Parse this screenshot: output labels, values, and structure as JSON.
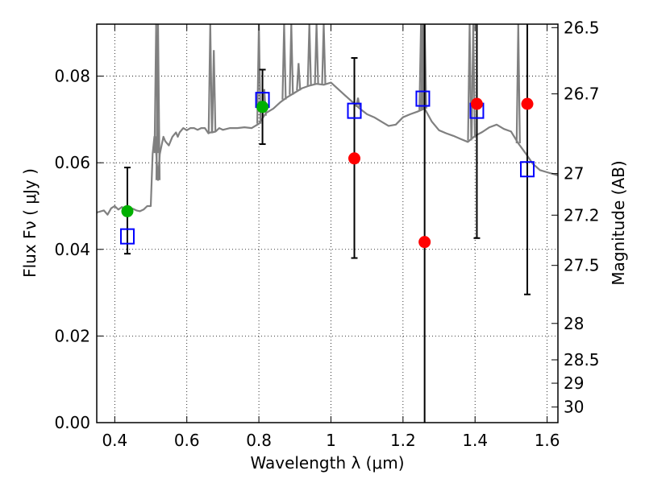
{
  "chart_data": {
    "type": "scatter",
    "xlabel": "Wavelength  λ (μm)",
    "ylabel": "Flux  Fν  ( μJy )",
    "ylabel_right": "Magnitude (AB)",
    "xlim": [
      0.35,
      1.63
    ],
    "ylim": [
      0.0,
      0.092
    ],
    "xticks": [
      0.4,
      0.6,
      0.8,
      1.0,
      1.2,
      1.4,
      1.6
    ],
    "xtick_labels": [
      "0.4",
      "0.6",
      "0.8",
      "1",
      "1.2",
      "1.4",
      "1.6"
    ],
    "yticks": [
      0.0,
      0.02,
      0.04,
      0.06,
      0.08
    ],
    "ytick_labels": [
      "0.00",
      "0.02",
      "0.04",
      "0.06",
      "0.08"
    ],
    "right_ticks": [
      {
        "label": "26.5",
        "flux": 0.0912
      },
      {
        "label": "26.7",
        "flux": 0.0759
      },
      {
        "label": "27",
        "flux": 0.0575
      },
      {
        "label": "27.2",
        "flux": 0.0479
      },
      {
        "label": "27.5",
        "flux": 0.0363
      },
      {
        "label": "28",
        "flux": 0.0229
      },
      {
        "label": "28.5",
        "flux": 0.0145
      },
      {
        "label": "29",
        "flux": 0.0091
      },
      {
        "label": "30",
        "flux": 0.0036
      }
    ],
    "grid": true,
    "colors": {
      "model": "#808080",
      "model_points": "#0000ff",
      "observed_hst": "#00b000",
      "observed_ir": "#ff0000",
      "errorbar": "#000000"
    },
    "series": [
      {
        "kind": "model_spectrum",
        "x": [
          0.35,
          0.37,
          0.38,
          0.39,
          0.4,
          0.41,
          0.42,
          0.43,
          0.44,
          0.45,
          0.46,
          0.47,
          0.48,
          0.49,
          0.5,
          0.505,
          0.51,
          0.512,
          0.52,
          0.525,
          0.53,
          0.535,
          0.54,
          0.55,
          0.56,
          0.57,
          0.575,
          0.58,
          0.59,
          0.6,
          0.61,
          0.62,
          0.63,
          0.64,
          0.65,
          0.66,
          0.665,
          0.67,
          0.68,
          0.69,
          0.7,
          0.72,
          0.74,
          0.76,
          0.78,
          0.8,
          0.82,
          0.84,
          0.86,
          0.88,
          0.9,
          0.92,
          0.94,
          0.96,
          0.98,
          1.0,
          1.02,
          1.04,
          1.06,
          1.08,
          1.1,
          1.12,
          1.14,
          1.16,
          1.18,
          1.2,
          1.22,
          1.24,
          1.26,
          1.28,
          1.3,
          1.32,
          1.34,
          1.36,
          1.38,
          1.4,
          1.42,
          1.44,
          1.46,
          1.48,
          1.5,
          1.52,
          1.54,
          1.56,
          1.58,
          1.6,
          1.63
        ],
        "y": [
          0.0485,
          0.049,
          0.048,
          0.0495,
          0.05,
          0.0492,
          0.0498,
          0.0487,
          0.049,
          0.0494,
          0.049,
          0.0488,
          0.0492,
          0.05,
          0.05,
          0.062,
          0.066,
          0.066,
          0.056,
          0.062,
          0.064,
          0.066,
          0.065,
          0.064,
          0.066,
          0.067,
          0.066,
          0.067,
          0.068,
          0.0675,
          0.068,
          0.068,
          0.0676,
          0.068,
          0.068,
          0.0668,
          0.067,
          0.067,
          0.0672,
          0.068,
          0.0676,
          0.068,
          0.068,
          0.0682,
          0.068,
          0.069,
          0.0715,
          0.0725,
          0.074,
          0.0752,
          0.0762,
          0.0772,
          0.0778,
          0.0782,
          0.078,
          0.0785,
          0.077,
          0.0755,
          0.074,
          0.0725,
          0.0712,
          0.0705,
          0.0695,
          0.0685,
          0.0688,
          0.0705,
          0.0712,
          0.0718,
          0.0725,
          0.0695,
          0.0675,
          0.0668,
          0.0662,
          0.0655,
          0.0648,
          0.0662,
          0.0671,
          0.0682,
          0.0688,
          0.0678,
          0.0672,
          0.0645,
          0.0622,
          0.0598,
          0.0583,
          0.0578,
          0.0571
        ]
      },
      {
        "kind": "model_spectrum_lines",
        "x": [
          0.515,
          0.52,
          0.665,
          0.675,
          0.8,
          0.815,
          0.87,
          0.89,
          0.91,
          0.94,
          0.96,
          0.98,
          1.075,
          1.25,
          1.255,
          1.26,
          1.385,
          1.395,
          1.52
        ],
        "y": [
          0.092,
          0.092,
          0.092,
          0.086,
          0.092,
          0.077,
          0.092,
          0.092,
          0.083,
          0.092,
          0.092,
          0.092,
          0.075,
          0.092,
          0.092,
          0.092,
          0.092,
          0.092,
          0.092
        ]
      },
      {
        "kind": "model_bandpass",
        "x": [
          0.435,
          0.81,
          1.065,
          1.255,
          1.405,
          1.545
        ],
        "y": [
          0.043,
          0.0745,
          0.072,
          0.0748,
          0.072,
          0.0585
        ]
      },
      {
        "kind": "observed_hst",
        "x": [
          0.435,
          0.81
        ],
        "y": [
          0.0488,
          0.0729
        ],
        "yerr_low": [
          0.0098,
          0.0086
        ],
        "yerr_high": [
          0.0101,
          0.0086
        ]
      },
      {
        "kind": "observed_ir",
        "x": [
          1.065,
          1.26,
          1.405,
          1.545
        ],
        "y": [
          0.061,
          0.0417,
          0.0736,
          0.0736
        ],
        "yerr_low": [
          0.023,
          0.0417,
          0.031,
          0.044
        ],
        "yerr_high": [
          0.0232,
          0.0503,
          0.0184,
          0.0184
        ]
      }
    ]
  }
}
